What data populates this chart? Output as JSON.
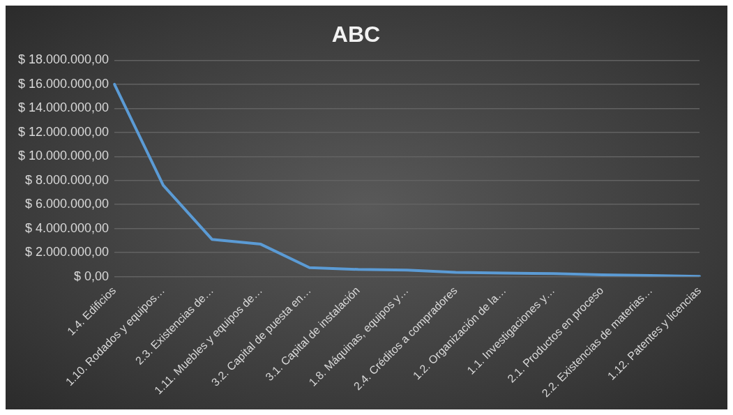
{
  "chart_data": {
    "type": "line",
    "title": "ABC",
    "categories": [
      "1.4. Edificios",
      "1.10. Rodados y equipos…",
      "2.3. Existencias de…",
      "1.11. Muebles y equipos de…",
      "3.2. Capital de puesta en…",
      "3.1. Capital de instalación",
      "1.8. Máquinas, equipos y…",
      "2.4. Créditos a compradores",
      "1.2. Organización de la…",
      "1.1. Investigaciones y…",
      "2.1. Productos en proceso",
      "2.2. Existencias de materias…",
      "1.12. Patentes y licencias"
    ],
    "series": [
      {
        "color": "#5b9bd5",
        "values": [
          16000000,
          7600000,
          3100000,
          2700000,
          750000,
          600000,
          550000,
          350000,
          300000,
          250000,
          150000,
          100000,
          20000
        ]
      }
    ],
    "ylim": [
      0,
      18000000
    ],
    "yticks": [
      {
        "value": 0,
        "label": "$ 0,00"
      },
      {
        "value": 2000000,
        "label": "$ 2.000.000,00"
      },
      {
        "value": 4000000,
        "label": "$ 4.000.000,00"
      },
      {
        "value": 6000000,
        "label": "$ 6.000.000,00"
      },
      {
        "value": 8000000,
        "label": "$ 8.000.000,00"
      },
      {
        "value": 10000000,
        "label": "$ 10.000.000,00"
      },
      {
        "value": 12000000,
        "label": "$ 12.000.000,00"
      },
      {
        "value": 14000000,
        "label": "$ 14.000.000,00"
      },
      {
        "value": 16000000,
        "label": "$ 16.000.000,00"
      },
      {
        "value": 18000000,
        "label": "$ 18.000.000,00"
      }
    ],
    "grid": "y",
    "legend": false,
    "marker": "none",
    "line_style": "solid"
  }
}
